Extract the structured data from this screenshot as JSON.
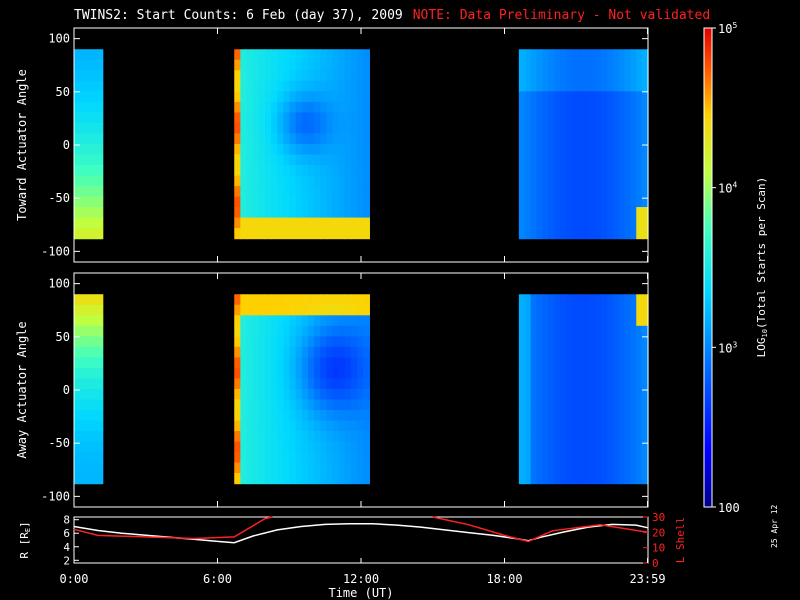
{
  "header": {
    "title": "TWINS2: Start Counts:  6 Feb (day  37), 2009",
    "note": "NOTE: Data Preliminary - Not validated"
  },
  "footer": {
    "stamp": "25 Apr 12"
  },
  "colors": {
    "background": "#000000",
    "axes": "#ffffff",
    "note": "#ff2020",
    "lshell": "#ff2020",
    "radius": "#ffffff"
  },
  "chart_data": [
    {
      "type": "heatmap",
      "panel": "toward",
      "ylabel": "Toward Actuator Angle",
      "ylim": [
        -110,
        110
      ],
      "yticks": [
        100,
        50,
        0,
        -50,
        -100
      ],
      "xlim": [
        0,
        24
      ],
      "data_intervals_hours": [
        [
          0,
          1.2
        ],
        [
          6.7,
          12.35
        ],
        [
          18.6,
          24
        ]
      ],
      "data_angle_range": [
        -88,
        90
      ]
    },
    {
      "type": "heatmap",
      "panel": "away",
      "ylabel": "Away Actuator Angle",
      "ylim": [
        -110,
        110
      ],
      "yticks": [
        100,
        50,
        0,
        -50,
        -100
      ],
      "xlim": [
        0,
        24
      ],
      "data_intervals_hours": [
        [
          0,
          1.2
        ],
        [
          6.7,
          12.35
        ],
        [
          18.6,
          24
        ]
      ],
      "data_angle_range": [
        -88,
        90
      ]
    },
    {
      "type": "line",
      "panel": "orbit",
      "xlabel": "Time (UT)",
      "xticks": [
        "0:00",
        "6:00",
        "12:00",
        "18:00",
        "23:59"
      ],
      "xtick_values": [
        0,
        6,
        12,
        18,
        23.98
      ],
      "ylabel_left": "R [R",
      "ylabel_left_sub": "E",
      "ylabel_left_tail": "]",
      "ylabel_right": "L Shell",
      "yticks_left": [
        2,
        4,
        6,
        8
      ],
      "ylim_left": [
        1.6,
        8.4
      ],
      "yticks_right": [
        0,
        10,
        20,
        30
      ],
      "ylim_right": [
        0,
        30
      ],
      "series": [
        {
          "name": "R [RE]",
          "axis": "left",
          "x": [
            0,
            1,
            2,
            3,
            4,
            5,
            6,
            6.7,
            7.5,
            8.5,
            9.5,
            10.5,
            11.5,
            12.5,
            13.5,
            14.5,
            15.5,
            16.5,
            17.5,
            18.5,
            19,
            19.5,
            20.5,
            21.5,
            22.5,
            23.5,
            24
          ],
          "y": [
            7.0,
            6.4,
            6.0,
            5.7,
            5.4,
            5.1,
            4.8,
            4.6,
            5.6,
            6.5,
            7.0,
            7.3,
            7.4,
            7.4,
            7.2,
            6.9,
            6.5,
            6.1,
            5.7,
            5.2,
            4.9,
            5.4,
            6.2,
            6.9,
            7.3,
            7.2,
            6.8
          ]
        },
        {
          "name": "L Shell",
          "axis": "right",
          "x": [
            0,
            1,
            3,
            5,
            6.7,
            8,
            8.3,
            null,
            15,
            16.5,
            18,
            19,
            20,
            22,
            24
          ],
          "y": [
            22,
            18,
            17,
            16,
            17,
            29,
            31,
            null,
            31,
            25,
            18,
            14,
            21,
            25,
            20
          ]
        }
      ]
    },
    {
      "type": "heatmap",
      "panel": "colorbar",
      "label": "LOG10(Total Starts per Scan)",
      "label_main": "LOG",
      "label_sub": "10",
      "label_tail": "(Total Starts per Scan)",
      "scale": "log",
      "range": [
        100,
        100000
      ],
      "tick_labels": [
        {
          "base": "10",
          "exp": "5",
          "value": 100000
        },
        {
          "base": "10",
          "exp": "4",
          "value": 10000
        },
        {
          "base": "10",
          "exp": "3",
          "value": 1000
        },
        {
          "base": "100",
          "exp": "",
          "value": 100
        }
      ]
    }
  ]
}
